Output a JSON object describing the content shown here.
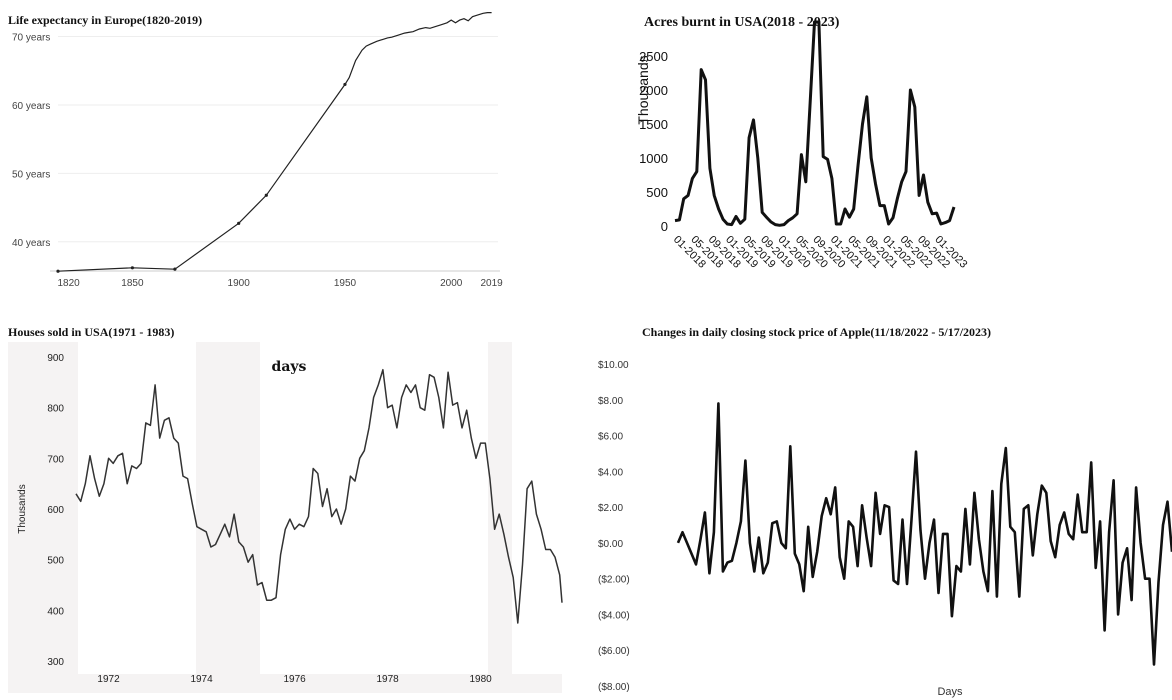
{
  "chart_data": [
    {
      "type": "line",
      "title": "Life expectancy in Europe(1820-2019)",
      "xlabel": "",
      "ylabel": "",
      "x_ticks": [
        "1820",
        "1850",
        "1900",
        "1950",
        "2000",
        "2019"
      ],
      "x_tick_values": [
        1820,
        1850,
        1900,
        1950,
        2000,
        2019
      ],
      "y_ticks": [
        "40 years",
        "50 years",
        "60 years",
        "70 years"
      ],
      "y_tick_values": [
        40,
        50,
        60,
        70
      ],
      "xlim": [
        1815,
        2022
      ],
      "ylim": [
        35,
        73
      ],
      "grid": true,
      "series": [
        {
          "x": [
            1815,
            1850,
            1870,
            1900,
            1913,
            1950,
            1952,
            1955,
            1958,
            1960,
            1962,
            1965,
            1968,
            1970,
            1972,
            1975,
            1978,
            1980,
            1982,
            1985,
            1988,
            1990,
            1992,
            1995,
            1998,
            2000,
            2002,
            2004,
            2006,
            2008,
            2010,
            2012,
            2015,
            2017,
            2019
          ],
          "y": [
            35.7,
            36.2,
            36.0,
            42.7,
            46.8,
            63.0,
            64.0,
            66.5,
            68.0,
            68.6,
            68.9,
            69.3,
            69.6,
            69.8,
            69.9,
            70.2,
            70.5,
            70.6,
            70.7,
            71.1,
            71.3,
            71.2,
            71.4,
            71.7,
            72.0,
            72.4,
            72.0,
            72.4,
            72.6,
            72.3,
            72.9,
            73.1,
            73.4,
            73.5,
            73.5
          ]
        }
      ]
    },
    {
      "type": "line",
      "title": "Acres burnt in USA(2018 - 2023)",
      "xlabel": "",
      "ylabel": "Thousands",
      "y_ticks": [
        "0",
        "500",
        "1000",
        "1500",
        "2000",
        "2500"
      ],
      "y_tick_values": [
        0,
        500,
        1000,
        1500,
        2000,
        2500
      ],
      "x_ticks": [
        "01-2018",
        "05-2018",
        "09-2018",
        "01-2019",
        "05-2019",
        "09-2019",
        "01-2020",
        "05-2020",
        "09-2020",
        "01-2021",
        "05-2021",
        "09-2021",
        "01-2022",
        "05-2022",
        "09-2022",
        "01-2023"
      ],
      "x_tick_index": [
        0,
        4,
        8,
        12,
        16,
        20,
        24,
        28,
        32,
        36,
        40,
        44,
        48,
        52,
        56,
        60
      ],
      "ylim": [
        0,
        3000
      ],
      "grid": false,
      "series": [
        {
          "values": [
            80,
            90,
            400,
            450,
            700,
            800,
            2300,
            2150,
            850,
            450,
            250,
            100,
            30,
            20,
            140,
            40,
            100,
            1300,
            1560,
            1000,
            200,
            130,
            60,
            20,
            10,
            20,
            80,
            120,
            180,
            1050,
            650,
            1800,
            3000,
            3000,
            1020,
            980,
            700,
            30,
            30,
            250,
            130,
            250,
            900,
            1500,
            1900,
            1000,
            620,
            300,
            300,
            30,
            120,
            400,
            650,
            800,
            2000,
            1750,
            450,
            750,
            350,
            180,
            190,
            30,
            50,
            80,
            280
          ]
        }
      ]
    },
    {
      "type": "line",
      "title": "Houses sold in USA(1971 - 1983)",
      "xlabel": "days",
      "ylabel": "Thousands",
      "y_ticks": [
        "300",
        "400",
        "500",
        "600",
        "700",
        "800",
        "900"
      ],
      "y_tick_values": [
        300,
        400,
        500,
        600,
        700,
        800,
        900
      ],
      "x_ticks": [
        "1972",
        "1974",
        "1976",
        "1978",
        "1980"
      ],
      "x_tick_values": [
        1972,
        1974,
        1976,
        1978,
        1980
      ],
      "xlim": [
        1971.3,
        1981.75
      ],
      "ylim": [
        300,
        900
      ],
      "recession_shading": [
        [
          1971.3,
          1971.75
        ],
        [
          1973.9,
          1975.2
        ],
        [
          1980.0,
          1980.5
        ]
      ],
      "grid": false,
      "series": [
        {
          "x": [
            1971.3,
            1971.4,
            1971.5,
            1971.6,
            1971.7,
            1971.8,
            1971.9,
            1972.0,
            1972.1,
            1972.2,
            1972.3,
            1972.4,
            1972.5,
            1972.6,
            1972.7,
            1972.8,
            1972.9,
            1973.0,
            1973.1,
            1973.2,
            1973.3,
            1973.4,
            1973.5,
            1973.6,
            1973.7,
            1973.8,
            1973.9,
            1974.0,
            1974.1,
            1974.2,
            1974.3,
            1974.4,
            1974.5,
            1974.6,
            1974.7,
            1974.8,
            1974.9,
            1975.0,
            1975.1,
            1975.2,
            1975.3,
            1975.4,
            1975.5,
            1975.6,
            1975.7,
            1975.8,
            1975.9,
            1976.0,
            1976.1,
            1976.2,
            1976.3,
            1976.4,
            1976.5,
            1976.6,
            1976.7,
            1976.8,
            1976.9,
            1977.0,
            1977.1,
            1977.2,
            1977.3,
            1977.4,
            1977.5,
            1977.6,
            1977.7,
            1977.8,
            1977.9,
            1978.0,
            1978.1,
            1978.2,
            1978.3,
            1978.4,
            1978.5,
            1978.6,
            1978.7,
            1978.8,
            1978.9,
            1979.0,
            1979.1,
            1979.2,
            1979.3,
            1979.4,
            1979.5,
            1979.6,
            1979.7,
            1979.8,
            1979.9,
            1980.0,
            1980.1,
            1980.2,
            1980.3,
            1980.4,
            1980.5,
            1980.6,
            1980.7,
            1980.8,
            1980.9,
            1981.0,
            1981.1,
            1981.2,
            1981.3,
            1981.4,
            1981.5,
            1981.6,
            1981.7,
            1981.75
          ],
          "y": [
            630,
            615,
            650,
            705,
            660,
            625,
            650,
            700,
            690,
            705,
            710,
            650,
            685,
            680,
            690,
            770,
            765,
            845,
            740,
            775,
            780,
            740,
            730,
            665,
            660,
            610,
            565,
            560,
            555,
            525,
            530,
            550,
            570,
            545,
            590,
            535,
            525,
            495,
            510,
            450,
            455,
            420,
            420,
            425,
            510,
            560,
            580,
            560,
            570,
            565,
            585,
            680,
            670,
            605,
            640,
            585,
            600,
            570,
            600,
            665,
            655,
            700,
            715,
            760,
            820,
            845,
            875,
            800,
            805,
            760,
            820,
            845,
            830,
            845,
            800,
            795,
            865,
            860,
            820,
            760,
            870,
            805,
            810,
            760,
            795,
            740,
            700,
            730,
            730,
            660,
            560,
            590,
            550,
            505,
            465,
            375,
            490,
            640,
            655,
            590,
            560,
            520,
            520,
            505,
            470,
            415
          ],
          "y_tail": 400
        }
      ]
    },
    {
      "type": "line",
      "title": "Changes in daily closing stock price of Apple(11/18/2022 - 5/17/2023)",
      "xlabel": "Days",
      "ylabel": "",
      "y_ticks": [
        "$10.00",
        "$8.00",
        "$6.00",
        "$4.00",
        "$2.00",
        "$0.00",
        "($2.00)",
        "($4.00)",
        "($6.00)",
        "($8.00)"
      ],
      "y_tick_values": [
        10,
        8,
        6,
        4,
        2,
        0,
        -2,
        -4,
        -6,
        -8
      ],
      "ylim": [
        -8,
        10
      ],
      "grid": false,
      "series": [
        {
          "values": [
            0.0,
            0.6,
            0.0,
            -0.6,
            -1.2,
            0.2,
            1.7,
            -1.7,
            0.6,
            7.8,
            -1.6,
            -1.1,
            -1.0,
            0.0,
            1.2,
            4.6,
            0.0,
            -1.6,
            0.3,
            -1.7,
            -1.1,
            1.1,
            1.2,
            0.0,
            -0.3,
            5.4,
            -0.6,
            -1.2,
            -2.7,
            0.9,
            -1.9,
            -0.5,
            1.5,
            2.5,
            1.6,
            3.1,
            -0.8,
            -2.0,
            1.2,
            0.9,
            -1.3,
            2.1,
            0.3,
            -1.3,
            2.8,
            0.5,
            2.1,
            2.0,
            -2.1,
            -2.3,
            1.3,
            -2.3,
            1.3,
            5.1,
            0.7,
            -2.0,
            0.0,
            1.3,
            -2.8,
            0.5,
            0.5,
            -4.1,
            -1.3,
            -1.6,
            1.9,
            -1.2,
            2.8,
            0.2,
            -1.6,
            -2.7,
            2.9,
            -3.0,
            3.3,
            5.3,
            0.9,
            0.6,
            -3.0,
            1.9,
            2.1,
            -0.7,
            1.6,
            3.2,
            2.8,
            0.1,
            -0.8,
            1.0,
            1.7,
            0.5,
            0.2,
            2.7,
            0.6,
            0.6,
            4.5,
            -1.4,
            1.2,
            -4.9,
            0.6,
            3.5,
            -4.0,
            -1.1,
            -0.3,
            -3.2,
            3.1,
            0.0,
            -2.0,
            -2.0,
            -6.8,
            -2.2,
            1.0,
            2.3,
            -0.5
          ]
        }
      ]
    }
  ]
}
